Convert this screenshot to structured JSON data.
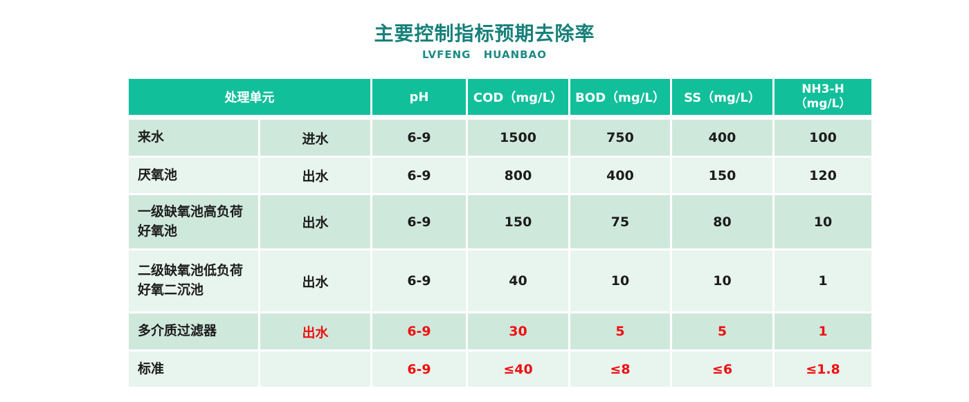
{
  "title": "主要控制指标预期去除率",
  "subtitle": "LVFENG HUANBAO",
  "colors": {
    "title": "#16807a",
    "subtitle": "#1d8b85",
    "header_bg": "#11bf9b",
    "header_text": "#ffffff",
    "row_dark_bg": "#cfe8dc",
    "row_light_bg": "#e8f4ee",
    "text": "#1c1c1c",
    "red": "#ef0f0f",
    "page_bg": "#ffffff"
  },
  "table": {
    "header": {
      "unit": "处理单元",
      "ph": "pH",
      "cod": "COD（mg/L）",
      "bod": "BOD（mg/L）",
      "ss": "SS（mg/L）",
      "nh3_line1": "NH3-H",
      "nh3_line2": "（mg/L）"
    },
    "rows": [
      {
        "unit": "来水",
        "flow": "进水",
        "ph": "6-9",
        "cod": "1500",
        "bod": "750",
        "ss": "400",
        "nh3": "100"
      },
      {
        "unit": "厌氧池",
        "flow": "出水",
        "ph": "6-9",
        "cod": "800",
        "bod": "400",
        "ss": "150",
        "nh3": "120"
      },
      {
        "unit": "一级缺氧池高负荷好氧池",
        "flow": "出水",
        "ph": "6-9",
        "cod": "150",
        "bod": "75",
        "ss": "80",
        "nh3": "10"
      },
      {
        "unit": "二级缺氧池低负荷好氧二沉池",
        "flow": "出水",
        "ph": "6-9",
        "cod": "40",
        "bod": "10",
        "ss": "10",
        "nh3": "1"
      },
      {
        "unit": "多介质过滤器",
        "flow": "出水",
        "ph": "6-9",
        "cod": "30",
        "bod": "5",
        "ss": "5",
        "nh3": "1"
      },
      {
        "unit": "标准",
        "flow": "",
        "ph": "6-9",
        "cod": "≤40",
        "bod": "≤8",
        "ss": "≤6",
        "nh3": "≤1.8"
      }
    ]
  },
  "chart_data": {
    "type": "table",
    "title": "主要控制指标预期去除率",
    "subtitle": "LVFENG HUANBAO",
    "columns": [
      "处理单元",
      "",
      "pH",
      "COD（mg/L）",
      "BOD（mg/L）",
      "SS（mg/L）",
      "NH3-H（mg/L）"
    ],
    "rows": [
      [
        "来水",
        "进水",
        "6-9",
        "1500",
        "750",
        "400",
        "100"
      ],
      [
        "厌氧池",
        "出水",
        "6-9",
        "800",
        "400",
        "150",
        "120"
      ],
      [
        "一级缺氧池高负荷好氧池",
        "出水",
        "6-9",
        "150",
        "75",
        "80",
        "10"
      ],
      [
        "二级缺氧池低负荷好氧二沉池",
        "出水",
        "6-9",
        "40",
        "10",
        "10",
        "1"
      ],
      [
        "多介质过滤器",
        "出水",
        "6-9",
        "30",
        "5",
        "5",
        "1"
      ],
      [
        "标准",
        "",
        "6-9",
        "≤40",
        "≤8",
        "≤6",
        "≤1.8"
      ]
    ],
    "notes": "Values of rows 多介质过滤器 and 标准 are rendered in red; row backgrounds alternate light green shades; header row is teal-green with white text"
  }
}
